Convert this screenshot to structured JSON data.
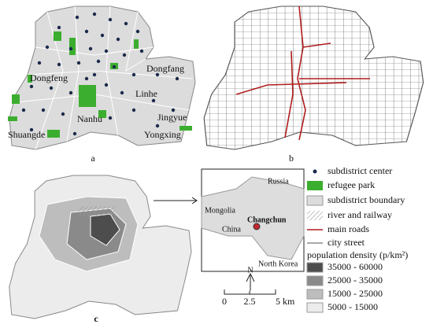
{
  "panels": {
    "a": {
      "label": "a",
      "districts": [
        "Dongfeng",
        "Dongfang",
        "Nanhu",
        "Linhe",
        "Jingyue",
        "Shuangde",
        "Yongxing"
      ]
    },
    "b": {
      "label": "b"
    },
    "c": {
      "label": "c"
    }
  },
  "inset": {
    "labels": [
      "Russia",
      "Mongolia",
      "Changchun",
      "China",
      "North Korea"
    ]
  },
  "legend": {
    "items": [
      "subdistrict center",
      "refugee park",
      "subdistrict boundary",
      "river and railway",
      "main roads",
      "city street"
    ],
    "density_title": "population density (p/km²)",
    "density_classes": [
      {
        "label": "35000 - 60000",
        "color": "#4d4d4d"
      },
      {
        "label": "25000 - 35000",
        "color": "#8a8a8a"
      },
      {
        "label": "15000 - 25000",
        "color": "#bdbdbd"
      },
      {
        "label": "5000 - 15000",
        "color": "#ececec"
      }
    ]
  },
  "scale_bar": {
    "north": "N",
    "labels": [
      "0",
      "2.5",
      "5 km"
    ]
  }
}
